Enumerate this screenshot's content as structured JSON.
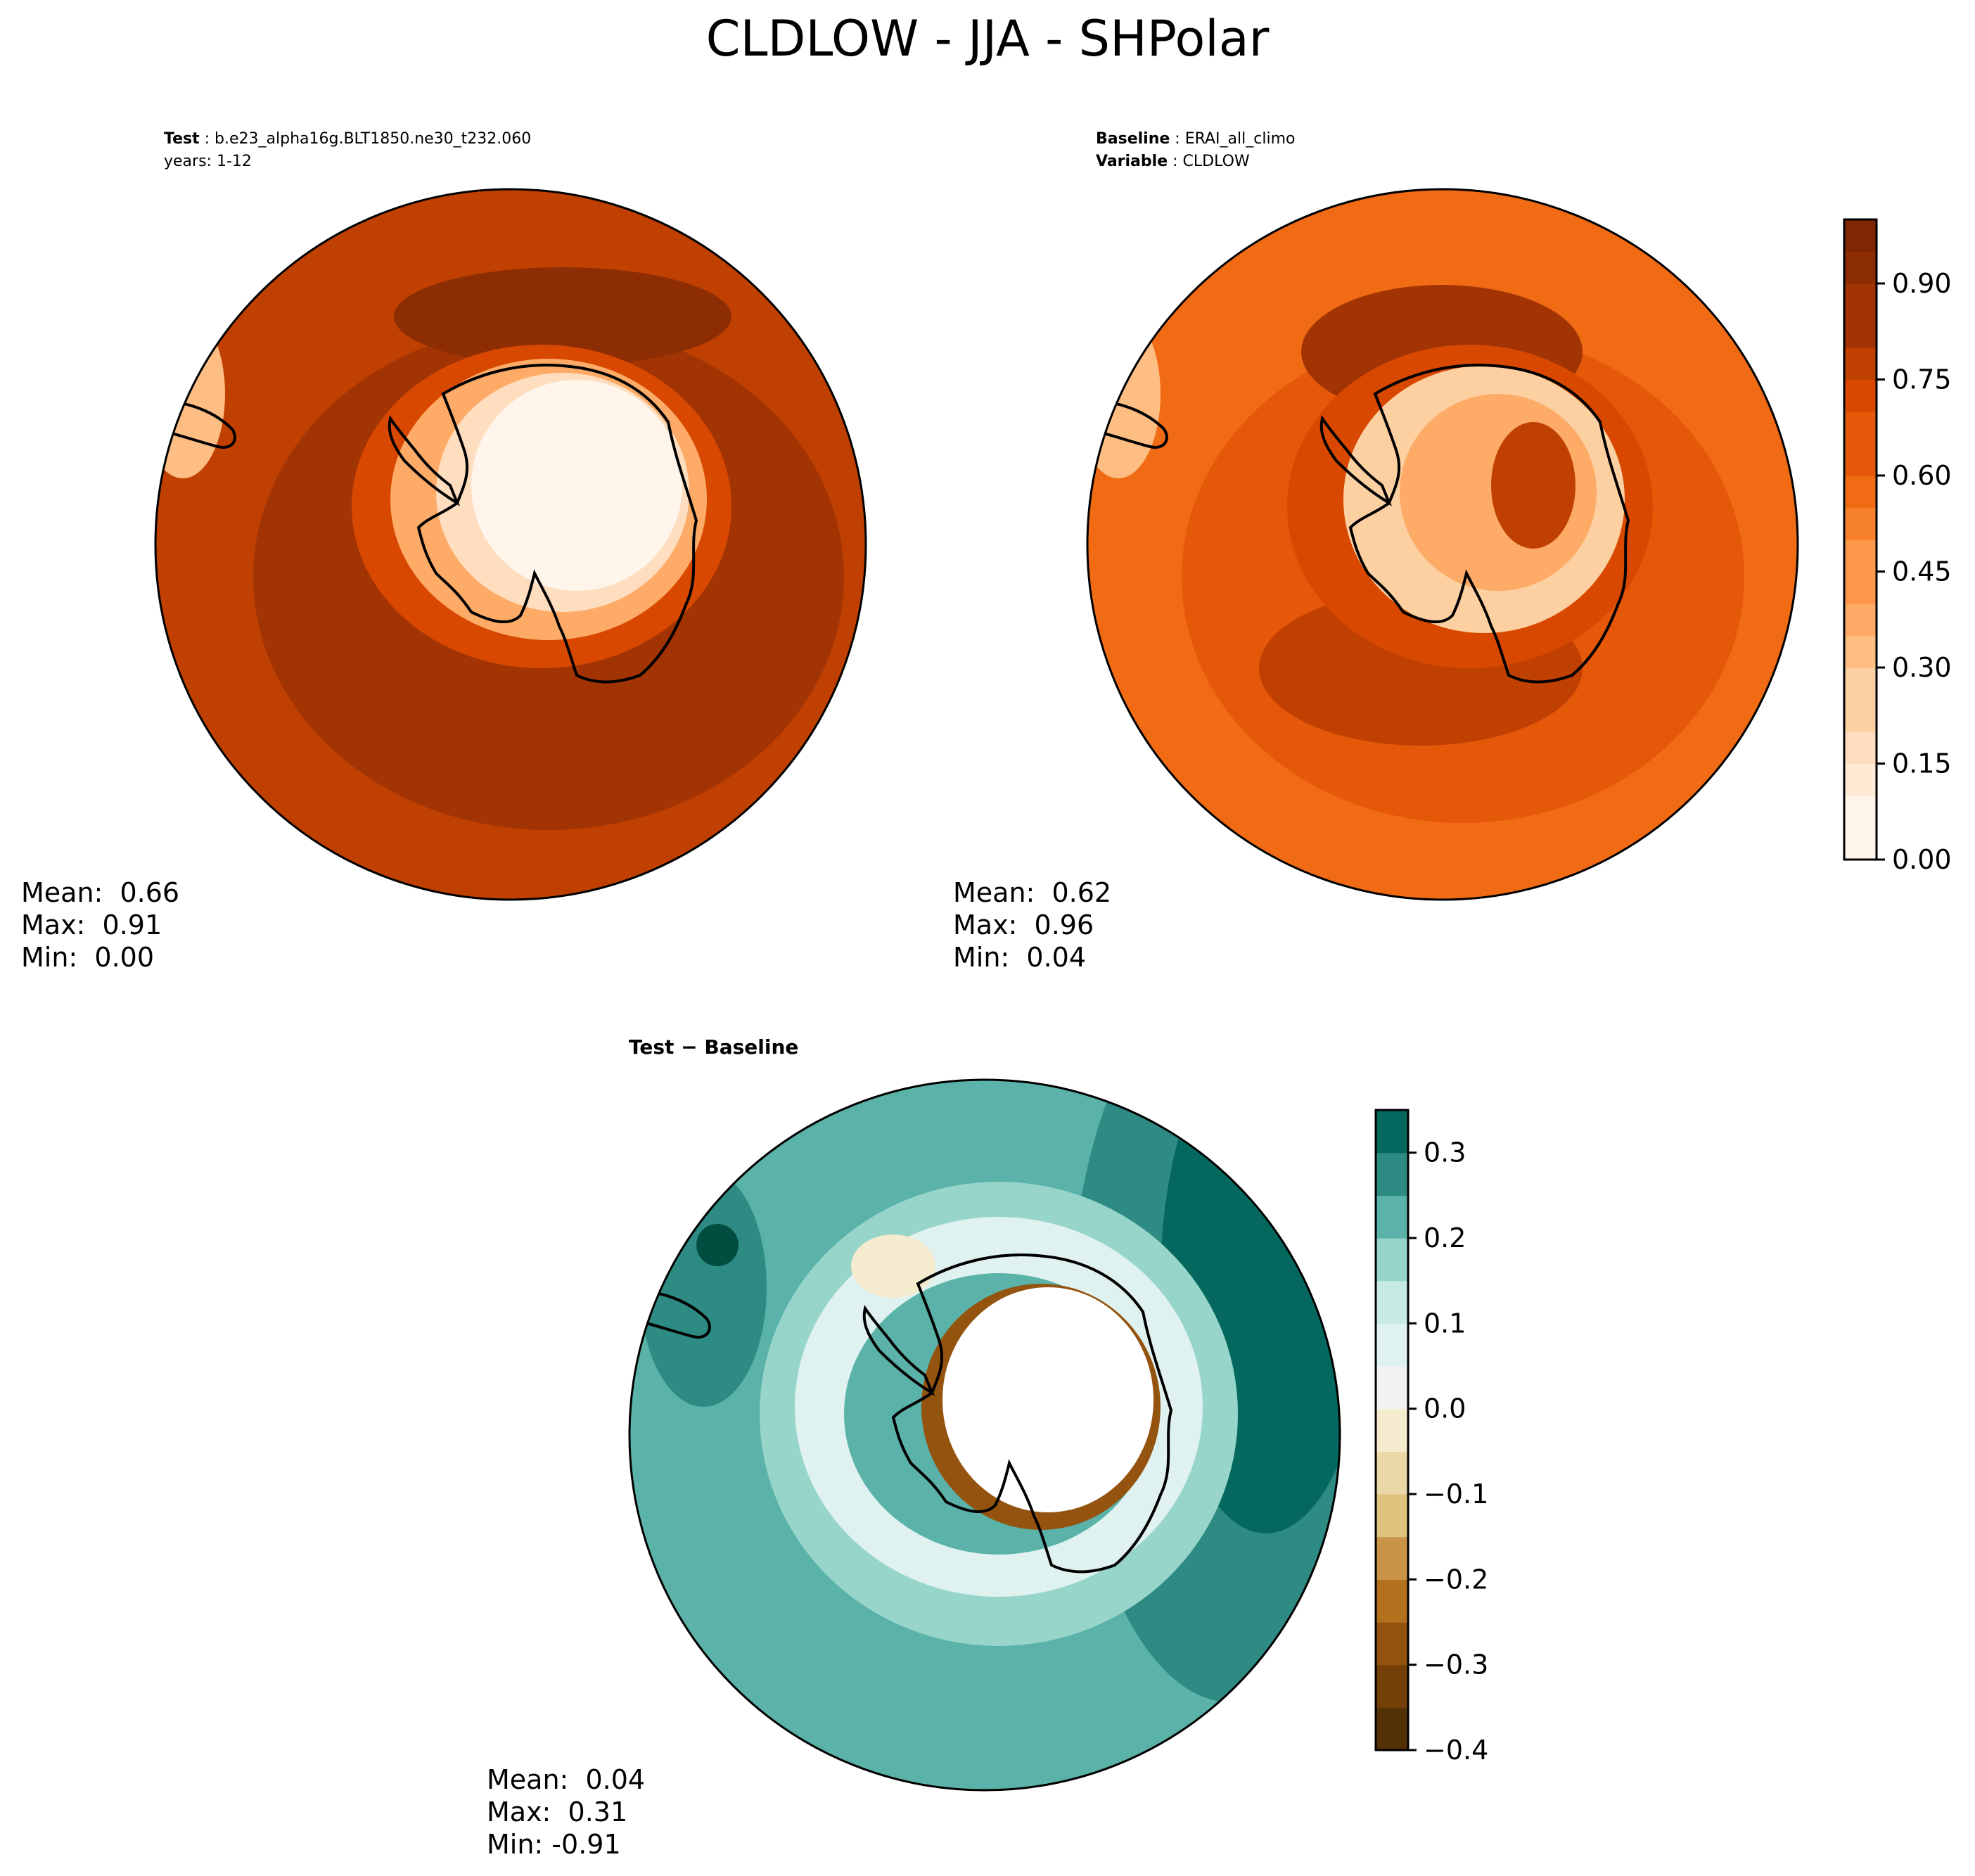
{
  "title": "CLDLOW - JJA - SHPolar",
  "colors": {
    "seq": [
      "#fff5eb",
      "#feead5",
      "#fedebf",
      "#fdd0a2",
      "#fdbd83",
      "#fdab67",
      "#fd974c",
      "#f8812c",
      "#f16b15",
      "#e55709",
      "#d84801",
      "#c04001",
      "#a23403",
      "#8c2d04",
      "#7f2704"
    ],
    "div": [
      "#543005",
      "#754008",
      "#945410",
      "#b3701d",
      "#c99447",
      "#dfc27d",
      "#ebd8a8",
      "#f5ecd0",
      "#f2f2f0",
      "#e0f2ef",
      "#c7eae5",
      "#97d5cb",
      "#5ab2a8",
      "#2e8b83",
      "#04685e",
      "#014d40"
    ],
    "coast": "#000000"
  },
  "panels": {
    "test": {
      "label": "Test",
      "case": "b.e23_alpha16g.BLT1850.ne30_t232.060",
      "years": "years: 1-12",
      "mean": "Mean:  0.66",
      "max": "Max:  0.91",
      "min": "Min:  0.00"
    },
    "baseline": {
      "label": "Baseline",
      "case": "ERAI_all_climo",
      "var_label": "Variable",
      "var": "CLDLOW",
      "mean": "Mean:  0.62",
      "max": "Max:  0.96",
      "min": "Min:  0.04"
    },
    "diff": {
      "title": "Test − Baseline",
      "mean": "Mean:  0.04",
      "max": "Max:  0.31",
      "min": "Min: -0.91"
    }
  },
  "chart_data": [
    {
      "type": "heatmap",
      "name": "Test",
      "projection": "south polar stereographic",
      "stats": {
        "mean": 0.66,
        "max": 0.91,
        "min": 0.0
      },
      "colorbar": {
        "range": [
          0.0,
          1.0
        ],
        "levels": 20,
        "ticks": [
          "0.00",
          "0.15",
          "0.30",
          "0.45",
          "0.60",
          "0.75",
          "0.90"
        ]
      }
    },
    {
      "type": "heatmap",
      "name": "Baseline",
      "projection": "south polar stereographic",
      "stats": {
        "mean": 0.62,
        "max": 0.96,
        "min": 0.04
      },
      "colorbar": {
        "range": [
          0.0,
          1.0
        ],
        "levels": 20,
        "ticks": [
          "0.00",
          "0.15",
          "0.30",
          "0.45",
          "0.60",
          "0.75",
          "0.90"
        ]
      }
    },
    {
      "type": "heatmap",
      "name": "Test − Baseline",
      "projection": "south polar stereographic",
      "stats": {
        "mean": 0.04,
        "max": 0.31,
        "min": -0.91
      },
      "colorbar": {
        "range": [
          -0.4,
          0.35
        ],
        "levels": 15,
        "ticks": [
          "0.3",
          "0.2",
          "0.1",
          "0.0",
          "−0.1",
          "−0.2",
          "−0.3",
          "−0.4"
        ]
      }
    }
  ]
}
